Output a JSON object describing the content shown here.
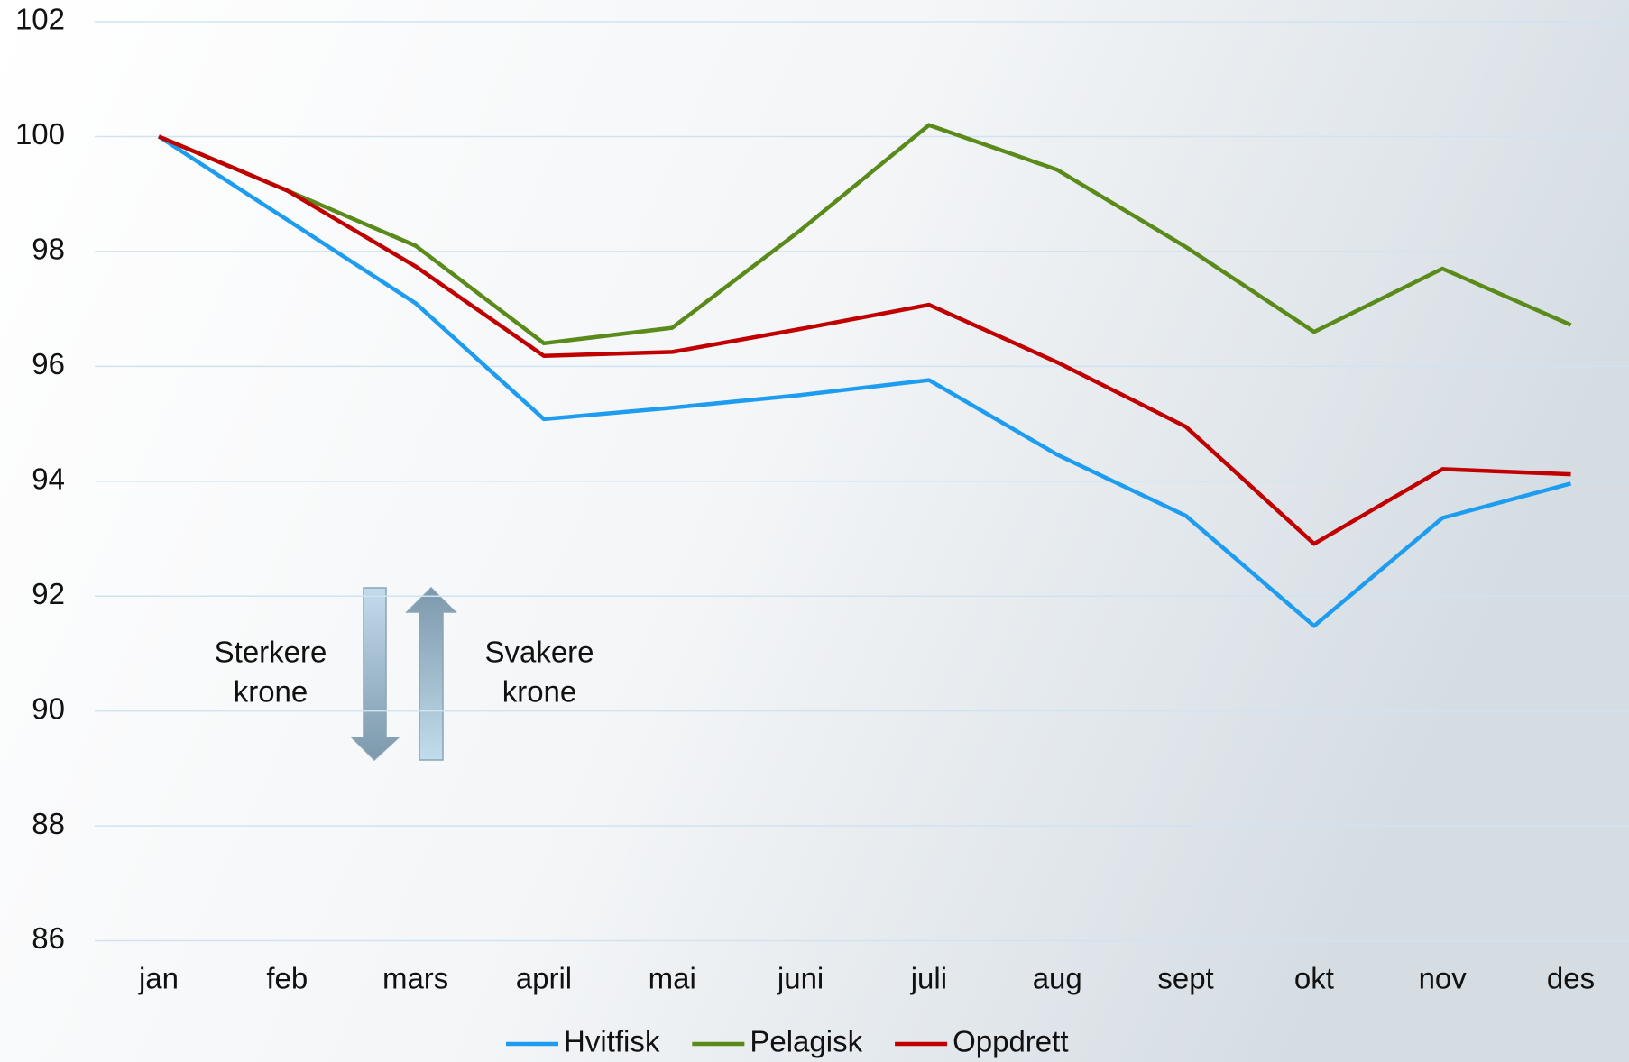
{
  "chart_data": {
    "type": "line",
    "categories": [
      "jan",
      "feb",
      "mars",
      "april",
      "mai",
      "juni",
      "juli",
      "aug",
      "sept",
      "okt",
      "nov",
      "des"
    ],
    "series": [
      {
        "name": "Hvitfisk",
        "color": "#1e9cf0",
        "values": [
          100,
          98.55,
          97.1,
          95.08,
          95.28,
          95.5,
          95.76,
          94.46,
          93.4,
          91.48,
          93.36,
          93.96
        ]
      },
      {
        "name": "Pelagisk",
        "color": "#5a8a1a",
        "values": [
          100,
          99.06,
          98.1,
          96.4,
          96.67,
          98.37,
          100.2,
          99.42,
          98.08,
          96.6,
          97.7,
          96.72
        ]
      },
      {
        "name": "Oppdrett",
        "color": "#c00000",
        "values": [
          100,
          99.06,
          97.74,
          96.18,
          96.25,
          96.65,
          97.07,
          96.07,
          94.95,
          92.91,
          94.21,
          94.12
        ]
      }
    ],
    "ylim": [
      86,
      102
    ],
    "yticks": [
      86,
      88,
      90,
      92,
      94,
      96,
      98,
      100,
      102
    ],
    "grid": true,
    "annotations": [
      {
        "lines": [
          "Sterkere",
          "krone"
        ]
      },
      {
        "lines": [
          "Svakere",
          "krone"
        ]
      }
    ],
    "legend": "bottom"
  }
}
